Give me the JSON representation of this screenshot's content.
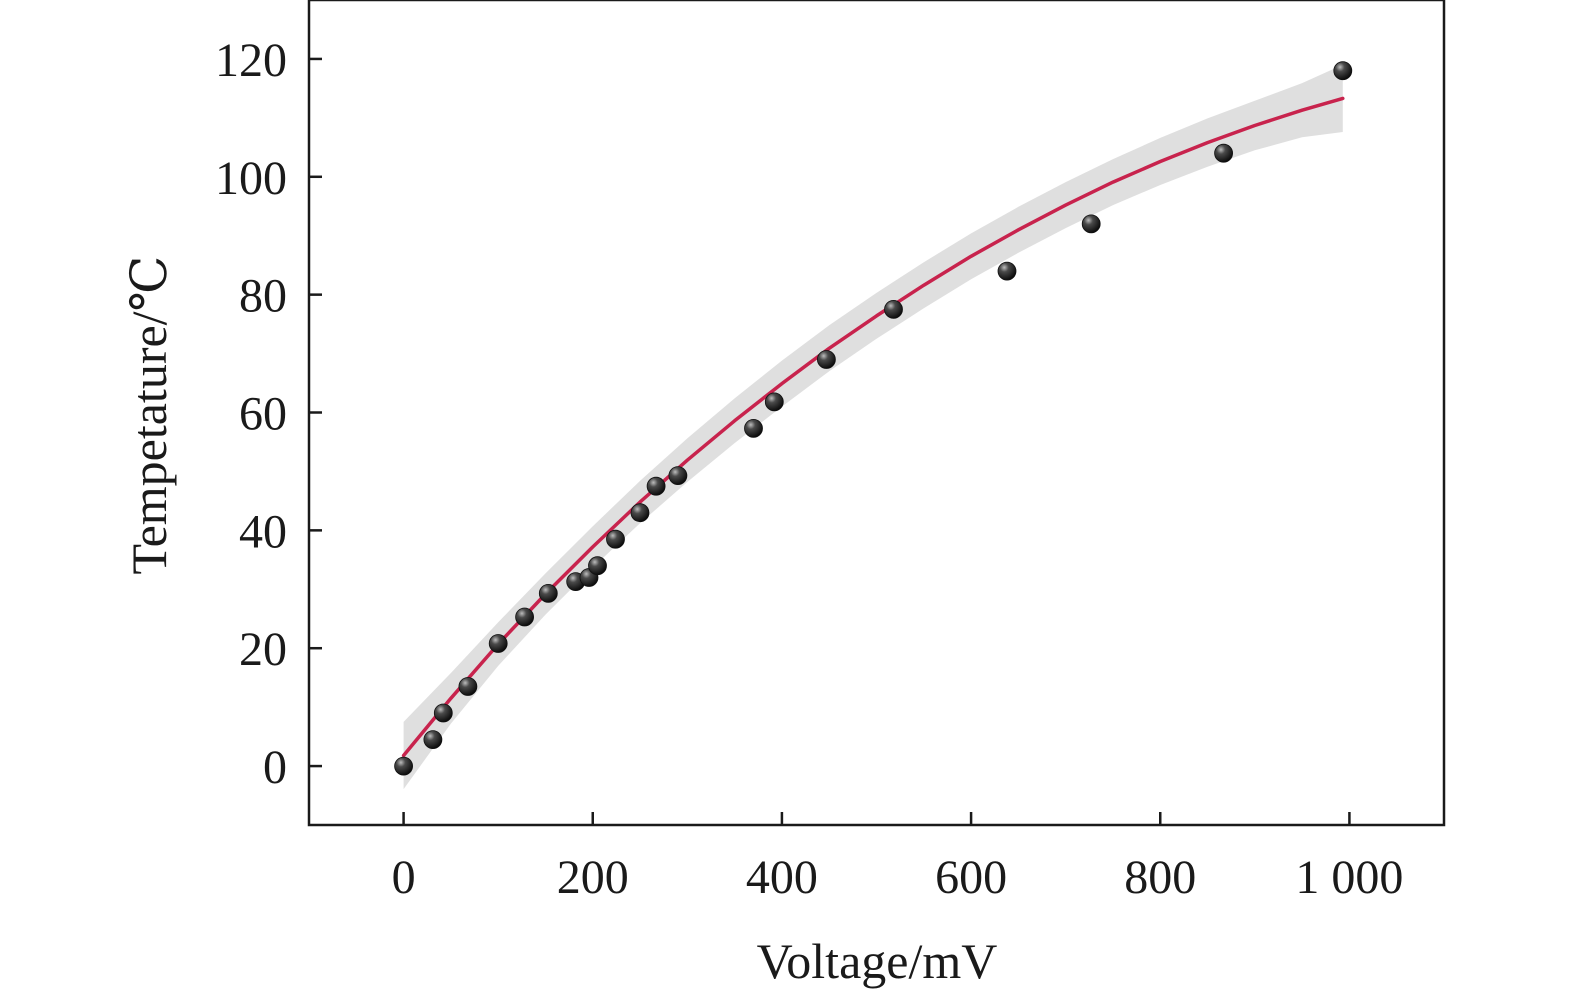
{
  "chart_data": {
    "type": "scatter",
    "title": "",
    "xlabel": "Voltage/mV",
    "ylabel": "Tempetature/℃",
    "xlim": [
      -100,
      1100
    ],
    "ylim": [
      -10,
      130
    ],
    "xticks": [
      0,
      200,
      400,
      600,
      800,
      1000
    ],
    "xtick_labels": [
      "0",
      "200",
      "400",
      "600",
      "800",
      "1 000"
    ],
    "yticks": [
      0,
      20,
      40,
      60,
      80,
      100,
      120
    ],
    "ytick_labels": [
      "0",
      "20",
      "40",
      "60",
      "80",
      "100",
      "120"
    ],
    "grid": false,
    "legend": "none",
    "series": [
      {
        "kind": "scatter",
        "color": "#1c1c1c",
        "x": [
          0,
          31,
          42,
          68,
          100,
          128,
          153,
          182,
          196,
          205,
          224,
          250,
          267,
          290,
          370,
          392,
          447,
          518,
          638,
          727,
          867,
          993
        ],
        "y": [
          0,
          4.5,
          9,
          13.5,
          20.8,
          25.3,
          29.3,
          31.3,
          32,
          34,
          38.5,
          43,
          47.5,
          49.3,
          57.3,
          61.8,
          69,
          77.5,
          84,
          92,
          104,
          118
        ]
      },
      {
        "kind": "fit-line",
        "color": "#c8234d",
        "x": [
          0,
          50,
          100,
          150,
          200,
          250,
          300,
          350,
          400,
          450,
          500,
          550,
          600,
          650,
          700,
          750,
          800,
          850,
          900,
          950,
          993
        ],
        "y": [
          1.8,
          11.5,
          20.7,
          29.2,
          37.2,
          44.8,
          51.9,
          58.6,
          64.9,
          70.9,
          76.4,
          81.6,
          86.5,
          91.0,
          95.2,
          99.1,
          102.6,
          105.8,
          108.7,
          111.3,
          113.3
        ]
      },
      {
        "kind": "confidence-band",
        "color": "#d9d9d9",
        "x": [
          0,
          50,
          100,
          150,
          200,
          250,
          300,
          350,
          400,
          450,
          500,
          550,
          600,
          650,
          700,
          750,
          800,
          850,
          900,
          950,
          993
        ],
        "upper": [
          7.5,
          15.8,
          24.4,
          32.7,
          40.7,
          48.4,
          55.6,
          62.4,
          68.8,
          74.8,
          80.3,
          85.5,
          90.4,
          94.9,
          99.1,
          103.0,
          106.6,
          109.9,
          112.9,
          115.9,
          119.0
        ],
        "lower": [
          -3.9,
          7.2,
          17.0,
          25.7,
          33.7,
          41.2,
          48.2,
          54.8,
          61.0,
          67.0,
          72.5,
          77.7,
          82.6,
          87.1,
          91.3,
          95.2,
          98.6,
          101.7,
          104.5,
          106.7,
          107.6
        ]
      }
    ]
  }
}
